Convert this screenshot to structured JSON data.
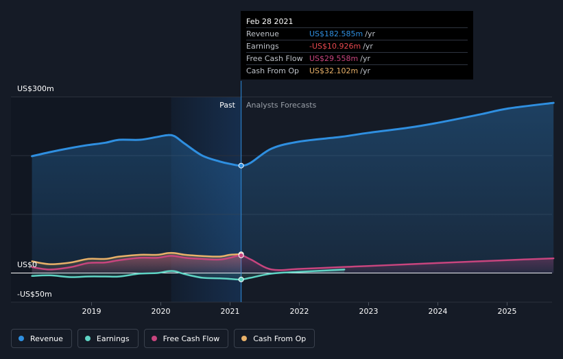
{
  "tooltip": {
    "date": "Feb 28 2021",
    "rows": [
      {
        "label": "Revenue",
        "value": "US$182.585m",
        "unit": "/yr",
        "color": "#2f8fe0"
      },
      {
        "label": "Earnings",
        "value": "-US$10.926m",
        "unit": "/yr",
        "color": "#e8484f"
      },
      {
        "label": "Free Cash Flow",
        "value": "US$29.558m",
        "unit": "/yr",
        "color": "#c8457e"
      },
      {
        "label": "Cash From Op",
        "value": "US$32.102m",
        "unit": "/yr",
        "color": "#e9b169"
      }
    ]
  },
  "chart_data": {
    "type": "line",
    "x_ticks": [
      "2019",
      "2020",
      "2021",
      "2022",
      "2023",
      "2024",
      "2025"
    ],
    "y_labels": {
      "top": "US$300m",
      "zero": "US$0",
      "bottom": "-US$50m"
    },
    "ylim": [
      -50,
      300
    ],
    "xlim": [
      2018.0,
      2025.67
    ],
    "region_labels": {
      "past": "Past",
      "forecast": "Analysts Forecasts"
    },
    "divider_x": 2021.16,
    "grid": true,
    "legend_position": "bottom-left",
    "series": [
      {
        "name": "Revenue",
        "color": "#2f8fe0",
        "x": [
          2018.14,
          2018.4,
          2018.7,
          2018.95,
          2019.2,
          2019.4,
          2019.7,
          2019.95,
          2020.1,
          2020.2,
          2020.35,
          2020.6,
          2020.85,
          2021.0,
          2021.16,
          2021.3,
          2021.6,
          2022.0,
          2022.6,
          2023.0,
          2023.6,
          2024.0,
          2024.6,
          2025.0,
          2025.67
        ],
        "y": [
          199,
          206,
          213,
          218,
          222,
          227,
          227,
          232,
          235,
          233,
          220,
          200,
          190,
          186,
          183,
          188,
          212,
          224,
          232,
          239,
          248,
          256,
          270,
          280,
          290
        ]
      },
      {
        "name": "Earnings",
        "color": "#5fd4c4",
        "x": [
          2018.14,
          2018.4,
          2018.7,
          2018.95,
          2019.2,
          2019.4,
          2019.7,
          2019.95,
          2020.1,
          2020.2,
          2020.35,
          2020.6,
          2020.85,
          2021.0,
          2021.16,
          2021.3,
          2021.6,
          2022.0,
          2022.65
        ],
        "y": [
          -5,
          -4,
          -7,
          -6,
          -6,
          -6,
          -1,
          0,
          3,
          3,
          -2,
          -8,
          -9,
          -10,
          -11,
          -8,
          -1,
          2,
          6
        ]
      },
      {
        "name": "Free Cash Flow",
        "color": "#c8457e",
        "x": [
          2018.14,
          2018.4,
          2018.7,
          2018.95,
          2019.2,
          2019.4,
          2019.7,
          2019.95,
          2020.1,
          2020.2,
          2020.35,
          2020.6,
          2020.85,
          2021.0,
          2021.16,
          2021.3,
          2021.6,
          2022.0,
          2022.6,
          2023.0,
          2023.6,
          2024.0,
          2024.6,
          2025.0,
          2025.67
        ],
        "y": [
          10,
          6,
          10,
          17,
          18,
          22,
          26,
          26,
          29,
          29,
          26,
          24,
          23,
          26,
          30,
          23,
          6,
          7,
          10,
          12,
          15,
          17,
          20,
          22,
          25
        ]
      },
      {
        "name": "Cash From Op",
        "color": "#e9b169",
        "x": [
          2018.14,
          2018.4,
          2018.7,
          2018.95,
          2019.2,
          2019.4,
          2019.7,
          2019.95,
          2020.1,
          2020.2,
          2020.35,
          2020.6,
          2020.85,
          2021.0,
          2021.16
        ],
        "y": [
          20,
          15,
          18,
          24,
          24,
          28,
          31,
          31,
          34,
          34,
          31,
          29,
          28,
          31,
          32
        ]
      }
    ]
  },
  "legend": [
    {
      "label": "Revenue",
      "color": "#2f8fe0"
    },
    {
      "label": "Earnings",
      "color": "#5fd4c4"
    },
    {
      "label": "Free Cash Flow",
      "color": "#c8457e"
    },
    {
      "label": "Cash From Op",
      "color": "#e9b169"
    }
  ]
}
